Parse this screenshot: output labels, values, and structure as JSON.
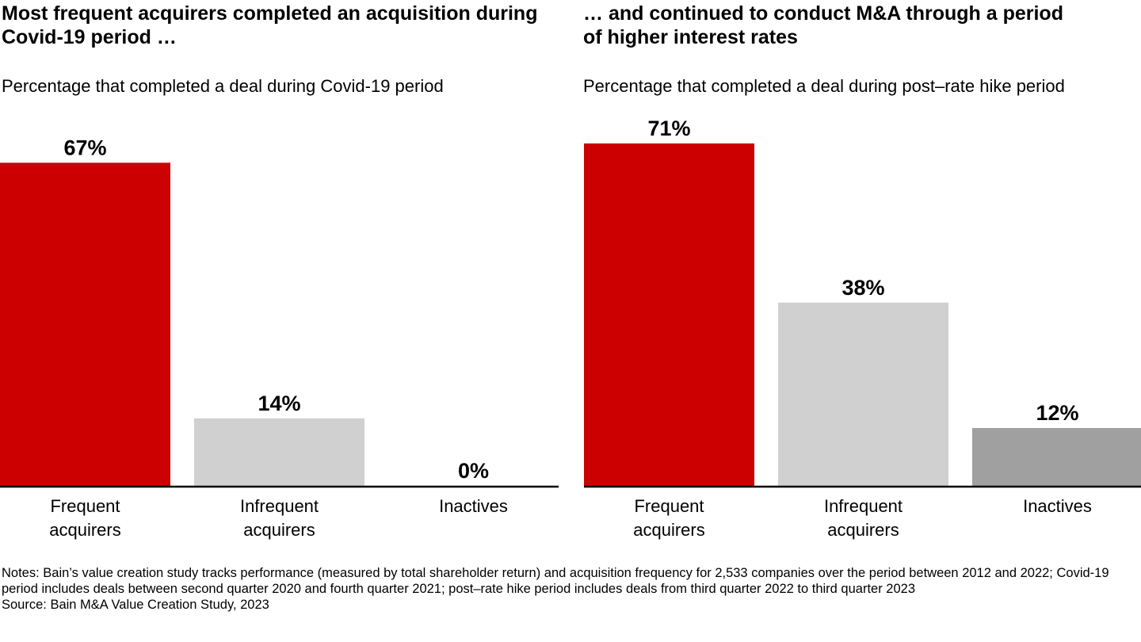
{
  "chart_data": [
    {
      "type": "bar",
      "title": "Most frequent acquirers completed an acquisition during Covid-19 period …",
      "subtitle": "Percentage that completed a deal during Covid-19 period",
      "categories": [
        "Frequent acquirers",
        "Infrequent acquirers",
        "Inactives"
      ],
      "category_lines": [
        [
          "Frequent",
          "acquirers"
        ],
        [
          "Infrequent",
          "acquirers"
        ],
        [
          "Inactives"
        ]
      ],
      "values": [
        67,
        14,
        0
      ],
      "data_labels": [
        "67%",
        "14%",
        "0%"
      ],
      "colors": [
        "#cc0000",
        "#d0d0d0",
        "#a0a0a0"
      ],
      "ylim": [
        0,
        71
      ],
      "grid": false
    },
    {
      "type": "bar",
      "title": "… and continued to conduct M&A through a period of higher interest rates",
      "subtitle": "Percentage that completed a deal during post–rate hike period",
      "categories": [
        "Frequent acquirers",
        "Infrequent acquirers",
        "Inactives"
      ],
      "category_lines": [
        [
          "Frequent",
          "acquirers"
        ],
        [
          "Infrequent",
          "acquirers"
        ],
        [
          "Inactives"
        ]
      ],
      "values": [
        71,
        38,
        12
      ],
      "data_labels": [
        "71%",
        "38%",
        "12%"
      ],
      "colors": [
        "#cc0000",
        "#d0d0d0",
        "#a0a0a0"
      ],
      "ylim": [
        0,
        71
      ],
      "grid": false
    }
  ],
  "notes": "Notes: Bain’s value creation study tracks performance (measured by total shareholder return) and acquisition frequency for 2,533 companies over the period between 2012 and 2022; Covid-19 period includes deals between second quarter 2020 and fourth quarter 2021; post–rate hike period includes deals from third quarter 2022 to third quarter 2023",
  "source": "Source: Bain M&A Value Creation Study, 2023"
}
